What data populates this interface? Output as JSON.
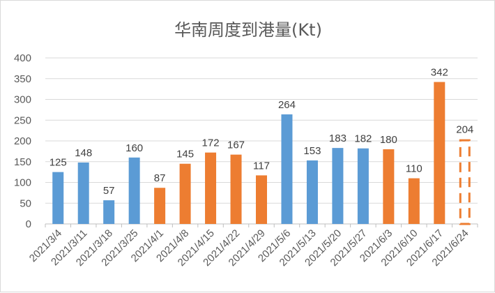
{
  "chart_data": {
    "type": "bar",
    "title": "华南周度到港量(Kt)",
    "categories": [
      "2021/3/4",
      "2021/3/11",
      "2021/3/18",
      "2021/3/25",
      "2021/4/1",
      "2021/4/8",
      "2021/4/15",
      "2021/4/22",
      "2021/4/29",
      "2021/5/6",
      "2021/5/13",
      "2021/5/20",
      "2021/5/27",
      "2021/6/3",
      "2021/6/10",
      "2021/6/17",
      "2021/6/24"
    ],
    "values": [
      125,
      148,
      57,
      160,
      87,
      145,
      172,
      167,
      117,
      264,
      153,
      183,
      182,
      180,
      110,
      342,
      204
    ],
    "bar_colors": [
      "#5b9bd5",
      "#5b9bd5",
      "#5b9bd5",
      "#5b9bd5",
      "#ed7d31",
      "#ed7d31",
      "#ed7d31",
      "#ed7d31",
      "#ed7d31",
      "#5b9bd5",
      "#5b9bd5",
      "#5b9bd5",
      "#5b9bd5",
      "#ed7d31",
      "#ed7d31",
      "#ed7d31",
      "#ed7d31"
    ],
    "bar_styles": [
      "solid",
      "solid",
      "solid",
      "solid",
      "solid",
      "solid",
      "solid",
      "solid",
      "solid",
      "solid",
      "solid",
      "solid",
      "solid",
      "solid",
      "solid",
      "solid",
      "dashed"
    ],
    "ylim": [
      0,
      400
    ],
    "yticks": [
      0,
      50,
      100,
      150,
      200,
      250,
      300,
      350,
      400
    ],
    "grid": true,
    "legend": "none"
  }
}
